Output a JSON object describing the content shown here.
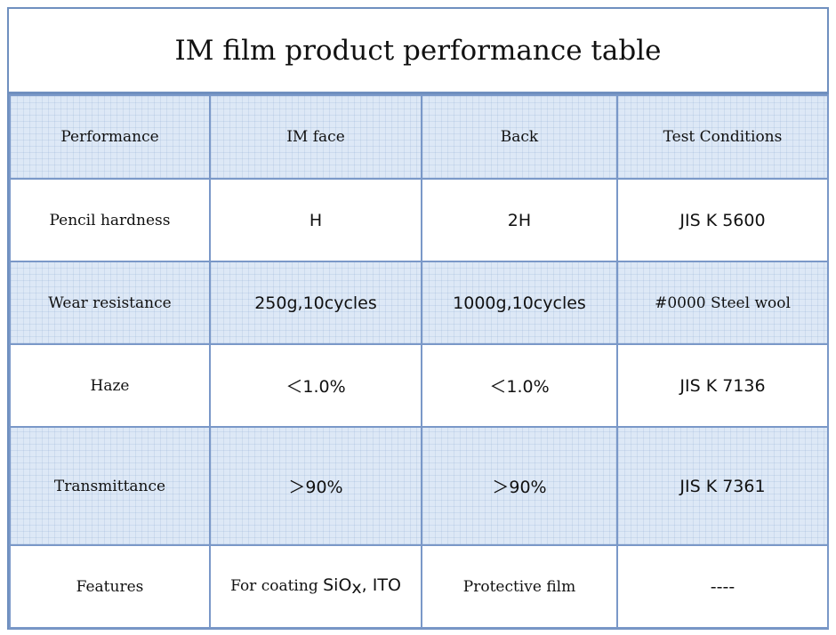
{
  "table": {
    "title": "IM film product performance table",
    "headers": [
      "Performance",
      "IM face",
      "Back",
      "Test Conditions"
    ],
    "rows": [
      [
        "Pencil hardness",
        "H",
        "2H",
        "JIS K 5600"
      ],
      [
        "Wear resistance",
        "250g,10cycles",
        "1000g,10cycles",
        "#0000 Steel wool"
      ],
      [
        "Haze",
        "＜1.0%",
        "＜1.0%",
        "JIS K 7136"
      ],
      [
        "Transmittance",
        "＞90%",
        "＞90%",
        "JIS K 7361"
      ],
      [
        "Features",
        "",
        "Protective film",
        "----"
      ]
    ],
    "features_im_face": {
      "prefix": "For coating ",
      "sio": "SiO",
      "sub": "x",
      "suffix": ", ITO"
    }
  },
  "colors": {
    "border": "#7a98c8",
    "shaded_row": "#dde8f6"
  }
}
